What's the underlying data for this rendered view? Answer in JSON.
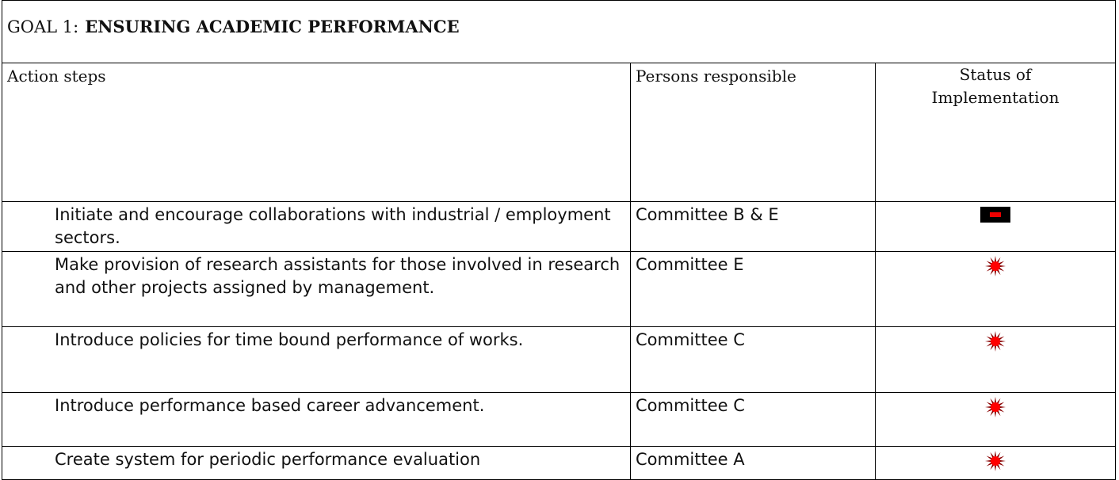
{
  "title": {
    "prefix": "GOAL 1:",
    "text": "ENSURING ACADEMIC PERFORMANCE"
  },
  "table": {
    "headers": [
      "Action steps",
      "Persons responsible",
      "Status of Implementation"
    ],
    "rows": [
      [
        "Initiate and encourage collaborations with industrial / employment sectors.",
        "Committee B & E"
      ],
      [
        "Make provision of research assistants for those involved in research and other projects assigned by management.",
        "Committee E"
      ],
      [
        "Introduce policies for time bound performance of works.",
        "Committee C"
      ],
      [
        "Introduce performance based career advancement.",
        "Committee C"
      ],
      [
        "Create system for periodic performance evaluation",
        "Committee A"
      ]
    ]
  }
}
